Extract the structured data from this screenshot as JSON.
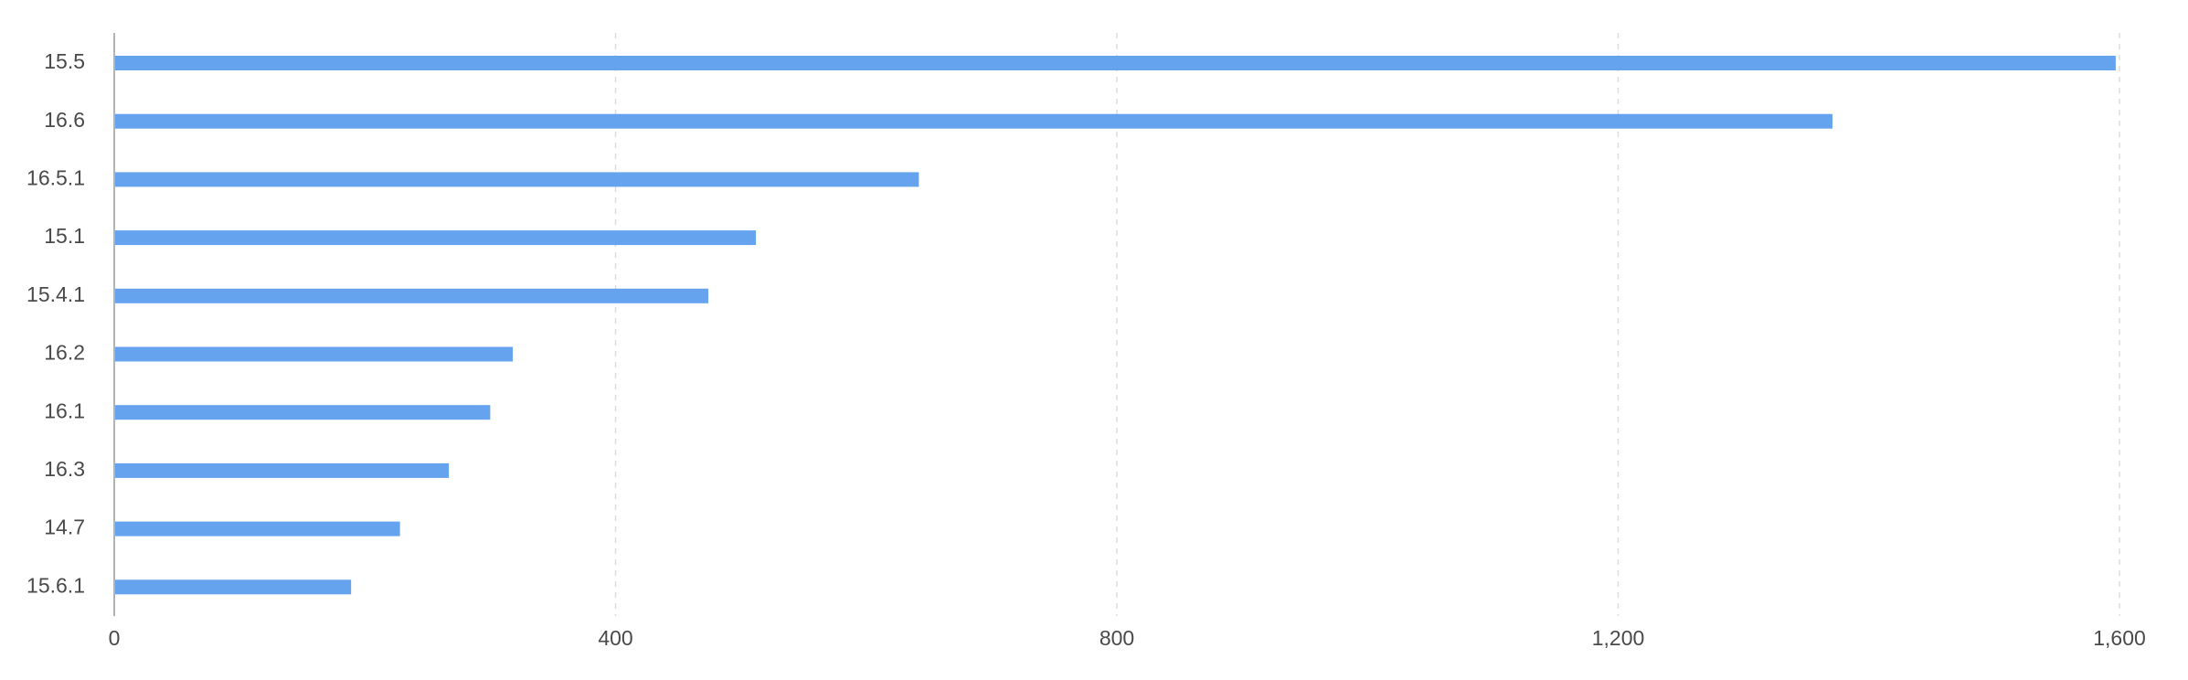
{
  "chart_data": {
    "type": "bar",
    "orientation": "horizontal",
    "title": "",
    "xlabel": "",
    "ylabel": "",
    "categories": [
      "15.5",
      "16.6",
      "16.5.1",
      "15.1",
      "15.4.1",
      "16.2",
      "16.1",
      "16.3",
      "14.7",
      "15.6.1"
    ],
    "values": [
      1597,
      1371,
      642,
      512,
      474,
      318,
      300,
      267,
      228,
      189
    ],
    "xlim": [
      0,
      1600
    ],
    "x_ticks": [
      0,
      400,
      800,
      1200,
      1600
    ],
    "x_tick_labels": [
      "0",
      "400",
      "800",
      "1,200",
      "1,600"
    ],
    "grid": "vertical dashed",
    "legend": "none",
    "bar_color": "#66a3ee"
  }
}
